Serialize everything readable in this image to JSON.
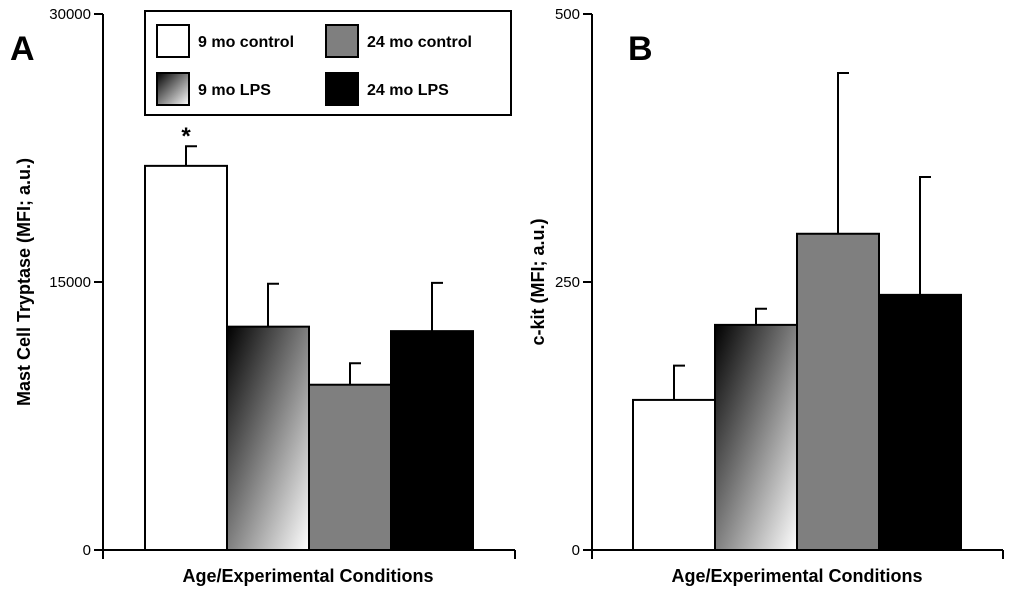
{
  "colors": {
    "white": "#ffffff",
    "gray": "#7f7f7f",
    "black": "#000000",
    "gradient_dark": "#000000",
    "gradient_light": "#ffffff"
  },
  "legend": {
    "items": [
      {
        "label": "9 mo control",
        "fill": "white"
      },
      {
        "label": "24 mo control",
        "fill": "gray"
      },
      {
        "label": "9 mo LPS",
        "fill": "gradient"
      },
      {
        "label": "24 mo LPS",
        "fill": "black"
      }
    ]
  },
  "chart_data": [
    {
      "type": "bar",
      "panel": "A",
      "title": "",
      "xlabel": "Age/Experimental Conditions",
      "ylabel": "Mast Cell Tryptase (MFI; a.u.)",
      "ylim": [
        0,
        30000
      ],
      "yticks": [
        "0",
        "15000",
        "30000"
      ],
      "ytick_values": [
        0,
        15000,
        30000
      ],
      "categories": [
        "9 mo control",
        "9 mo LPS",
        "24 mo control",
        "24 mo LPS"
      ],
      "fills": [
        "white",
        "gradient",
        "gray",
        "black"
      ],
      "values": [
        21500,
        12500,
        9250,
        12250
      ],
      "errors": [
        1100,
        2400,
        1200,
        2700
      ],
      "annotations": [
        {
          "category": "9 mo control",
          "text": "*"
        }
      ]
    },
    {
      "type": "bar",
      "panel": "B",
      "title": "",
      "xlabel": "Age/Experimental Conditions",
      "ylabel": "c-kit (MFI; a.u.)",
      "ylim": [
        0,
        500
      ],
      "yticks": [
        "0",
        "250",
        "500"
      ],
      "ytick_values": [
        0,
        250,
        500
      ],
      "categories": [
        "9 mo control",
        "9 mo LPS",
        "24 mo control",
        "24 mo LPS"
      ],
      "fills": [
        "white",
        "gradient",
        "gray",
        "black"
      ],
      "values": [
        140,
        210,
        295,
        238
      ],
      "errors": [
        32,
        15,
        150,
        110
      ],
      "annotations": []
    }
  ]
}
